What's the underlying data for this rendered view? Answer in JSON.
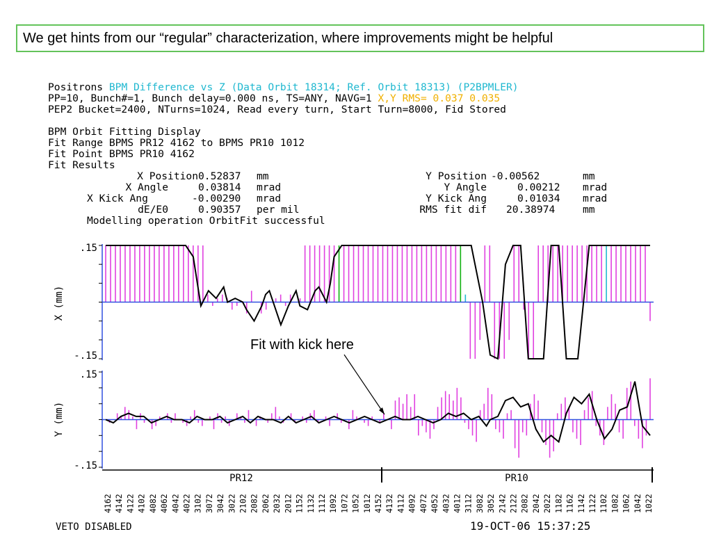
{
  "banner": "We get hints from our “regular” characterization, where improvements might be helpful",
  "header": {
    "line1_a": "Positrons ",
    "line1_b": "BPM Difference vs Z (Data Orbit 18314; Ref. Orbit 18313) (P2BPMLER)",
    "line2_a": "PP=10, Bunch#=1, Bunch delay=0.000 ns, TS=ANY, NAVG=1 ",
    "line2_b": "X,Y RMS= 0.037 0.035",
    "line3": "PEP2 Bucket=2400, NTurns=1024, Read every turn, Start Turn=8000, Fid Stored",
    "line4": "BPM Orbit Fitting Display",
    "line5": "Fit Range BPMS PR12 4162 to BPMS PR10 1012",
    "line6": "Fit Point BPMS PR10 4162",
    "line7": "Fit Results"
  },
  "fit_results": [
    {
      "label": "X Position",
      "value": "0.52837",
      "unit": "mm"
    },
    {
      "label": "X Angle",
      "value": "0.03814",
      "unit": "mrad"
    },
    {
      "label": "X Kick Ang",
      "value": "-0.00290",
      "unit": "mrad"
    },
    {
      "label": "dE/E0",
      "value": "0.90357",
      "unit": "per mil"
    },
    {
      "label": "Y Position",
      "value": "-0.00562",
      "unit": "mm"
    },
    {
      "label": "Y Angle",
      "value": "0.00212",
      "unit": "mrad"
    },
    {
      "label": "Y Kick Ang",
      "value": "0.01034",
      "unit": "mrad"
    },
    {
      "label": "RMS fit dif",
      "value": "20.38974",
      "unit": "mm"
    }
  ],
  "modelling_status": "Modelling operation OrbitFit successful",
  "annotation": "Fit with kick here",
  "footer": {
    "left": "VETO DISABLED",
    "right": "19-OCT-06 15:37:25"
  },
  "colors": {
    "bar": "#e040e0",
    "fit": "#000000",
    "zero": "#3050e0",
    "axis": "#3050e0",
    "green": "#10b010",
    "cyan": "#20b8d0",
    "banner_border": "#63c35a"
  },
  "chart_data": [
    {
      "type": "bar",
      "panel": "X",
      "ylabel": "X (mm)",
      "ylim": [
        -0.15,
        0.15
      ],
      "ytick_labels": [
        ".15",
        "-.15"
      ],
      "region_labels": [
        "PR12",
        "PR10"
      ],
      "bpm_labels": [
        "4162",
        "4142",
        "4122",
        "4102",
        "4082",
        "4062",
        "4042",
        "4022",
        "3102",
        "3072",
        "3042",
        "3022",
        "2102",
        "2082",
        "2062",
        "2032",
        "2012",
        "1152",
        "1132",
        "1112",
        "1092",
        "1072",
        "1052",
        "1012",
        "4152",
        "4132",
        "4112",
        "4092",
        "4072",
        "4052",
        "4032",
        "4012",
        "3112",
        "3082",
        "3052",
        "2142",
        "2122",
        "2082",
        "2042",
        "2022",
        "1182",
        "1162",
        "1142",
        "1122",
        "1102",
        "1082",
        "1062",
        "1042",
        "1022"
      ],
      "values": [
        0.15,
        0.15,
        0.15,
        0.15,
        0.15,
        0.15,
        0.15,
        0.15,
        0.15,
        0.15,
        0.15,
        0.15,
        0.15,
        0.15,
        0.15,
        0.15,
        0.15,
        0.15,
        0.15,
        0.15,
        0.15,
        0.02,
        -0.01,
        0.01,
        0.02,
        0.01,
        -0.02,
        -0.01,
        0.0,
        -0.03,
        0.03,
        0.0,
        -0.03,
        -0.02,
        0.0,
        0.01,
        0.02,
        -0.01,
        0.02,
        0.0,
        0.01,
        0.15,
        0.15,
        0.15,
        0.15,
        0.15,
        0.15,
        0.15,
        0.15,
        0.15,
        0.15,
        0.15,
        0.15,
        0.15,
        0.15,
        0.15,
        0.15,
        0.15,
        0.15,
        0.15,
        0.15,
        0.15,
        0.15,
        0.15,
        0.15,
        0.15,
        0.15,
        0.15,
        0.15,
        0.15,
        0.15,
        0.15,
        0.15,
        0.15,
        0.02,
        -0.15,
        -0.15,
        -0.1,
        0.15,
        0.15,
        -0.15,
        -0.15,
        -0.15,
        -0.1,
        0.15,
        0.15,
        -0.02,
        -0.15,
        -0.15,
        0.15,
        0.15,
        0.15,
        0.15,
        0.15,
        0.15,
        0.15,
        0.15,
        0.15,
        0.15,
        0.15,
        0.15,
        0.15,
        0.15,
        0.15,
        0.15,
        0.15,
        0.15,
        0.15,
        0.15,
        0.15,
        0.15,
        0.15,
        -0.05
      ],
      "bar_colors_special": {
        "48": "green",
        "73": "green",
        "74": "cyan",
        "103": "cyan"
      },
      "fit": [
        [
          0,
          0.15
        ],
        [
          21,
          0.15
        ],
        [
          23,
          0.12
        ],
        [
          25,
          -0.01
        ],
        [
          27,
          0.03
        ],
        [
          29,
          0.01
        ],
        [
          31,
          0.04
        ],
        [
          32,
          0.0
        ],
        [
          34,
          0.01
        ],
        [
          36,
          0.0
        ],
        [
          37,
          -0.02
        ],
        [
          39,
          -0.05
        ],
        [
          41,
          -0.01
        ],
        [
          42,
          0.02
        ],
        [
          43,
          0.03
        ],
        [
          45,
          -0.03
        ],
        [
          46,
          -0.06
        ],
        [
          48,
          -0.01
        ],
        [
          50,
          0.03
        ],
        [
          51,
          -0.01
        ],
        [
          53,
          -0.02
        ],
        [
          55,
          0.03
        ],
        [
          56,
          0.04
        ],
        [
          58,
          0.0
        ],
        [
          59,
          0.05
        ],
        [
          60,
          0.12
        ],
        [
          62,
          0.15
        ],
        [
          96,
          0.15
        ],
        [
          99,
          0.0
        ],
        [
          101,
          -0.14
        ],
        [
          103,
          -0.15
        ],
        [
          105,
          0.1
        ],
        [
          107,
          0.15
        ],
        [
          109,
          0.15
        ],
        [
          111,
          -0.15
        ],
        [
          115,
          -0.15
        ],
        [
          117,
          0.15
        ],
        [
          119,
          0.15
        ],
        [
          121,
          -0.15
        ],
        [
          124,
          -0.15
        ],
        [
          127,
          0.15
        ],
        [
          143,
          0.15
        ]
      ]
    },
    {
      "type": "bar",
      "panel": "Y",
      "ylabel": "Y (mm)",
      "ylim": [
        -0.15,
        0.15
      ],
      "ytick_labels": [
        ".15",
        "-.15"
      ],
      "values": [
        0.0,
        -0.01,
        0.0,
        0.02,
        0.01,
        0.04,
        0.03,
        0.01,
        -0.03,
        0.02,
        -0.01,
        0.0,
        -0.03,
        -0.02,
        0.01,
        0.0,
        0.02,
        -0.01,
        0.02,
        0.0,
        -0.01,
        -0.02,
        0.01,
        0.03,
        -0.01,
        -0.02,
        0.0,
        0.01,
        -0.03,
        0.02,
        -0.01,
        0.01,
        -0.02,
        0.0,
        0.02,
        0.01,
        -0.01,
        0.03,
        0.0,
        -0.02,
        0.01,
        0.0,
        -0.01,
        0.02,
        0.04,
        0.01,
        -0.01,
        0.0,
        0.02,
        -0.01,
        0.0,
        0.01,
        -0.01,
        0.02,
        0.03,
        -0.01,
        0.0,
        0.01,
        -0.02,
        0.0,
        0.02,
        -0.01,
        0.0,
        -0.03,
        0.03,
        0.01,
        0.0,
        -0.01,
        -0.02,
        0.01,
        0.0,
        -0.01,
        0.02,
        0.0,
        -0.03,
        0.06,
        0.07,
        0.05,
        0.08,
        0.04,
        0.08,
        -0.05,
        -0.02,
        -0.04,
        -0.06,
        -0.03,
        0.04,
        0.07,
        0.09,
        0.08,
        0.06,
        0.1,
        0.07,
        -0.01,
        -0.03,
        -0.05,
        -0.07,
        0.03,
        0.05,
        0.1,
        0.08,
        -0.03,
        -0.04,
        -0.06,
        0.02,
        0.03,
        -0.09,
        -0.12,
        -0.04,
        -0.05,
        0.05,
        0.08,
        0.06,
        -0.04,
        -0.08,
        -0.12,
        -0.1,
        0.02,
        0.05,
        0.07,
        0.04,
        -0.04,
        -0.06,
        -0.08,
        0.03,
        0.07,
        0.09,
        -0.02,
        -0.05,
        -0.08,
        0.04,
        0.08,
        0.05,
        -0.04,
        -0.06,
        0.1,
        0.12,
        -0.02,
        -0.06,
        -0.09,
        -0.05,
        0.13
      ],
      "fit": [
        [
          0,
          0.0
        ],
        [
          2,
          -0.01
        ],
        [
          4,
          0.01
        ],
        [
          6,
          0.02
        ],
        [
          8,
          0.01
        ],
        [
          10,
          0.01
        ],
        [
          12,
          -0.01
        ],
        [
          14,
          0.0
        ],
        [
          16,
          0.01
        ],
        [
          18,
          0.0
        ],
        [
          20,
          0.0
        ],
        [
          22,
          -0.01
        ],
        [
          24,
          0.01
        ],
        [
          26,
          0.0
        ],
        [
          28,
          0.0
        ],
        [
          30,
          0.01
        ],
        [
          32,
          -0.01
        ],
        [
          34,
          0.0
        ],
        [
          36,
          0.01
        ],
        [
          38,
          -0.01
        ],
        [
          40,
          0.01
        ],
        [
          42,
          0.0
        ],
        [
          44,
          0.0
        ],
        [
          46,
          -0.01
        ],
        [
          48,
          0.01
        ],
        [
          50,
          -0.01
        ],
        [
          52,
          0.0
        ],
        [
          54,
          0.01
        ],
        [
          56,
          -0.01
        ],
        [
          58,
          0.0
        ],
        [
          60,
          0.01
        ],
        [
          62,
          0.0
        ],
        [
          64,
          -0.01
        ],
        [
          66,
          0.0
        ],
        [
          68,
          0.01
        ],
        [
          70,
          0.0
        ],
        [
          72,
          -0.01
        ],
        [
          74,
          0.0
        ],
        [
          76,
          0.01
        ],
        [
          78,
          0.0
        ],
        [
          80,
          0.0
        ],
        [
          82,
          0.01
        ],
        [
          84,
          0.0
        ],
        [
          86,
          -0.01
        ],
        [
          88,
          0.0
        ],
        [
          90,
          0.02
        ],
        [
          92,
          0.01
        ],
        [
          94,
          0.02
        ],
        [
          96,
          0.0
        ],
        [
          98,
          0.01
        ],
        [
          100,
          -0.02
        ],
        [
          101,
          0.0
        ],
        [
          103,
          0.01
        ],
        [
          105,
          0.06
        ],
        [
          107,
          0.07
        ],
        [
          109,
          0.04
        ],
        [
          111,
          0.05
        ],
        [
          113,
          -0.03
        ],
        [
          115,
          -0.07
        ],
        [
          117,
          -0.05
        ],
        [
          119,
          -0.07
        ],
        [
          121,
          0.02
        ],
        [
          123,
          0.07
        ],
        [
          125,
          0.05
        ],
        [
          127,
          0.08
        ],
        [
          129,
          0.0
        ],
        [
          131,
          -0.06
        ],
        [
          133,
          -0.03
        ],
        [
          135,
          0.03
        ],
        [
          137,
          0.04
        ],
        [
          139,
          0.12
        ],
        [
          141,
          -0.02
        ],
        [
          143,
          -0.05
        ]
      ]
    }
  ]
}
